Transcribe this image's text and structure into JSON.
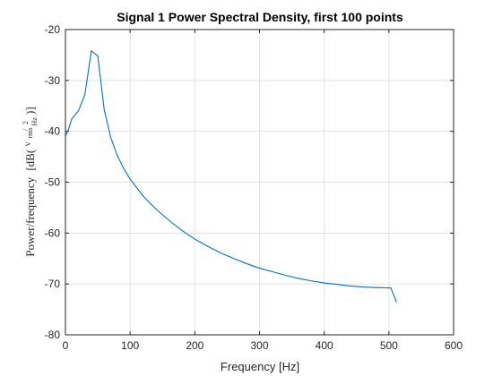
{
  "chart_data": {
    "type": "line",
    "title": "Signal 1 Power Spectral Density, first 100 points",
    "xlabel": "Frequency [Hz]",
    "ylabel": {
      "prefix": "Power/frequency",
      "unit_open": "[dB(",
      "numerator": "V",
      "numerator_sub": "rms",
      "numerator_sup": "2",
      "denominator": "Hz",
      "unit_close": ")]"
    },
    "xlim": [
      0,
      600
    ],
    "ylim": [
      -80,
      -20
    ],
    "x_ticks": [
      0,
      100,
      200,
      300,
      400,
      500,
      600
    ],
    "y_ticks": [
      -80,
      -70,
      -60,
      -50,
      -40,
      -30,
      -20
    ],
    "grid": true,
    "series": [
      {
        "color": "#0072bd",
        "x": [
          0,
          5,
          10,
          20,
          30,
          40,
          50,
          60,
          70,
          80,
          90,
          100,
          120,
          140,
          160,
          180,
          200,
          220,
          240,
          260,
          280,
          300,
          320,
          340,
          360,
          380,
          400,
          420,
          440,
          460,
          480,
          503,
          512
        ],
        "y": [
          -41,
          -39.5,
          -37.5,
          -36,
          -32.8,
          -24.2,
          -25.2,
          -35.8,
          -41.2,
          -44.7,
          -47.3,
          -49.4,
          -52.7,
          -55.3,
          -57.5,
          -59.5,
          -61.2,
          -62.6,
          -63.9,
          -65.0,
          -66.0,
          -66.9,
          -67.6,
          -68.3,
          -68.9,
          -69.4,
          -69.8,
          -70.1,
          -70.4,
          -70.6,
          -70.7,
          -70.8,
          -73.6
        ]
      }
    ]
  }
}
